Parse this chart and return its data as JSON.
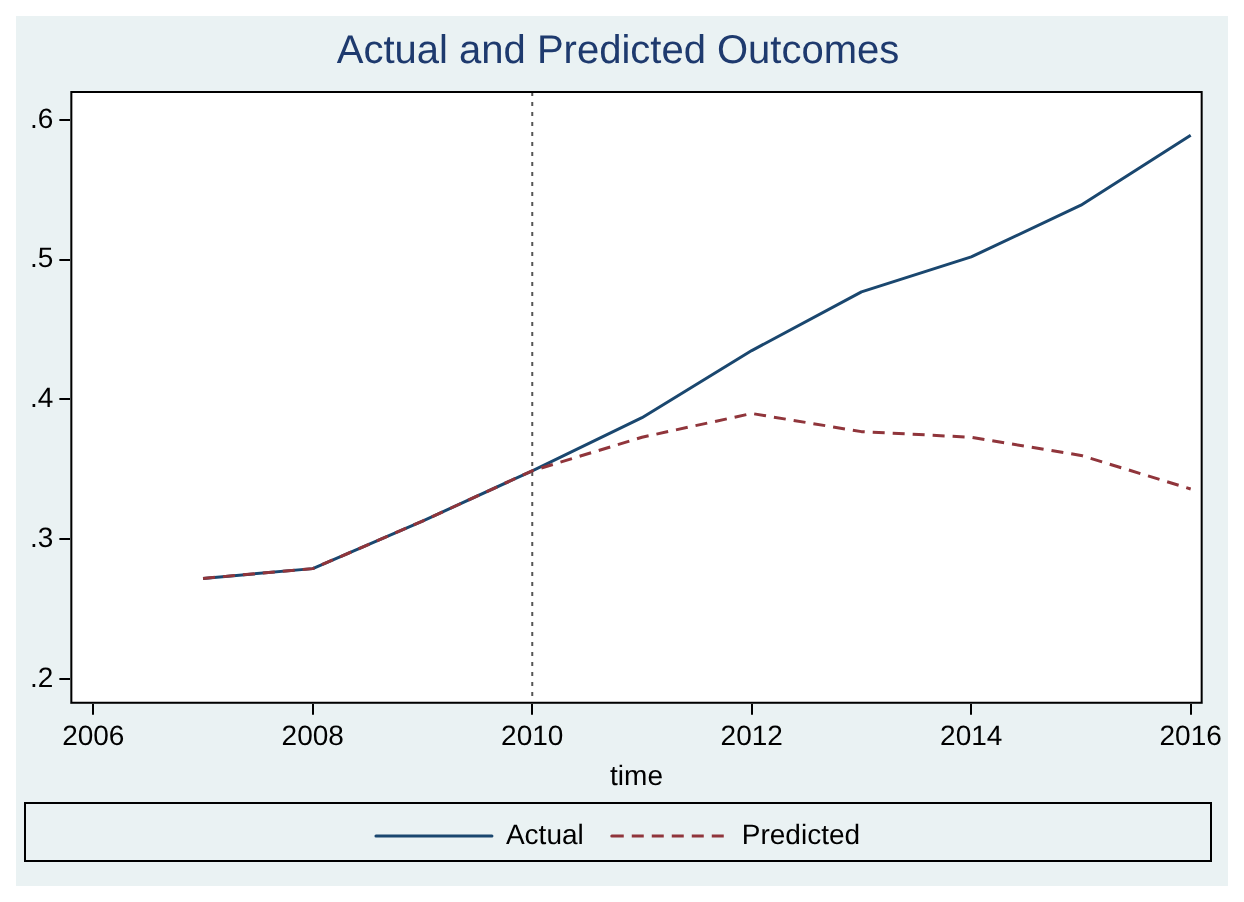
{
  "chart_data": {
    "type": "line",
    "title": "Actual and Predicted Outcomes",
    "xlabel": "time",
    "x": [
      2007,
      2008,
      2009,
      2010,
      2011,
      2012,
      2013,
      2014,
      2015,
      2016
    ],
    "series": [
      {
        "name": "Actual",
        "color": "#1a476f",
        "line_style": "solid",
        "values": [
          0.272,
          0.279,
          0.313,
          0.349,
          0.387,
          0.435,
          0.477,
          0.502,
          0.539,
          0.589
        ]
      },
      {
        "name": "Predicted",
        "color": "#90353b",
        "line_style": "dashed",
        "values": [
          0.272,
          0.279,
          0.313,
          0.349,
          0.373,
          0.39,
          0.377,
          0.373,
          0.36,
          0.336
        ]
      }
    ],
    "xlim": [
      2005.8,
      2016.1
    ],
    "xticks": [
      2006,
      2008,
      2010,
      2012,
      2014,
      2016
    ],
    "ylim": [
      0.183,
      0.62
    ],
    "yticks": [
      {
        "value": 0.2,
        "label": ".2"
      },
      {
        "value": 0.3,
        "label": ".3"
      },
      {
        "value": 0.4,
        "label": ".4"
      },
      {
        "value": 0.5,
        "label": ".5"
      },
      {
        "value": 0.6,
        "label": ".6"
      }
    ],
    "ref_lines": [
      {
        "axis": "x",
        "value": 2010,
        "color": "#555555",
        "line_style": "dotted"
      }
    ],
    "grid": false,
    "legend": "bottom",
    "marker": "none"
  }
}
